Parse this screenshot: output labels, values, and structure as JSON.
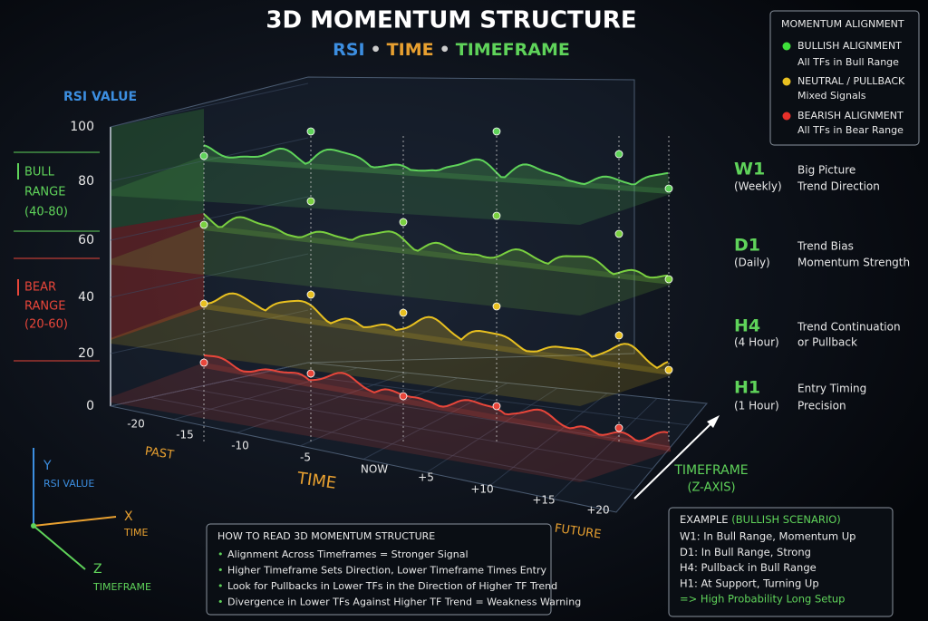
{
  "title": "3D MOMENTUM STRUCTURE",
  "subtitle": {
    "rsi": "RSI",
    "time": "TIME",
    "timeframe": "TIMEFRAME"
  },
  "y_axis": {
    "label": "RSI VALUE",
    "ticks": [
      "0",
      "20",
      "40",
      "60",
      "80",
      "100"
    ]
  },
  "time_axis": {
    "label": "TIME",
    "past": "PAST",
    "future": "FUTURE",
    "ticks": [
      "-20",
      "-15",
      "-10",
      "-5",
      "NOW",
      "+5",
      "+10",
      "+15",
      "+20"
    ]
  },
  "timeframe_axis": {
    "label": "TIMEFRAME",
    "note": "(Z-AXIS)"
  },
  "ranges": [
    {
      "name": "BULL",
      "word": "RANGE",
      "span": "(40-80)"
    },
    {
      "name": "BEAR",
      "word": "RANGE",
      "span": "(20-60)"
    }
  ],
  "timeframes": [
    {
      "code": "W1",
      "name": "(Weekly)",
      "desc": [
        "Big Picture",
        "Trend Direction"
      ]
    },
    {
      "code": "D1",
      "name": "(Daily)",
      "desc": [
        "Trend Bias",
        "Momentum Strength"
      ]
    },
    {
      "code": "H4",
      "name": "(4 Hour)",
      "desc": [
        "Trend Continuation",
        "or Pullback"
      ]
    },
    {
      "code": "H1",
      "name": "(1 Hour)",
      "desc": [
        "Entry Timing",
        "Precision"
      ]
    }
  ],
  "legend": {
    "title": "MOMENTUM ALIGNMENT",
    "items": [
      {
        "name": "BULLISH ALIGNMENT",
        "desc": "All TFs in Bull Range"
      },
      {
        "name": "NEUTRAL / PULLBACK",
        "desc": "Mixed Signals"
      },
      {
        "name": "BEARISH ALIGNMENT",
        "desc": "All TFs in Bear Range"
      }
    ]
  },
  "axes_key": {
    "y": "Y",
    "y_label": "RSI VALUE",
    "x": "X",
    "x_label": "TIME",
    "z": "Z",
    "z_label": "TIMEFRAME"
  },
  "how_to": {
    "title": "HOW TO READ 3D MOMENTUM STRUCTURE",
    "items": [
      "Alignment Across Timeframes = Stronger Signal",
      "Higher Timeframe Sets Direction, Lower Timeframe Times Entry",
      "Look for Pullbacks in Lower TFs in the Direction of Higher TF Trend",
      "Divergence in Lower TFs Against Higher TF Trend = Weakness Warning"
    ]
  },
  "example": {
    "title": "EXAMPLE",
    "title_note": "(BULLISH SCENARIO)",
    "lines": [
      "W1:  In Bull Range, Momentum Up",
      "D1:  In Bull Range, Strong",
      "H4:  Pullback in Bull Range",
      "H1:  At Support, Turning Up"
    ],
    "conclusion": "=> High Probability Long Setup"
  }
}
